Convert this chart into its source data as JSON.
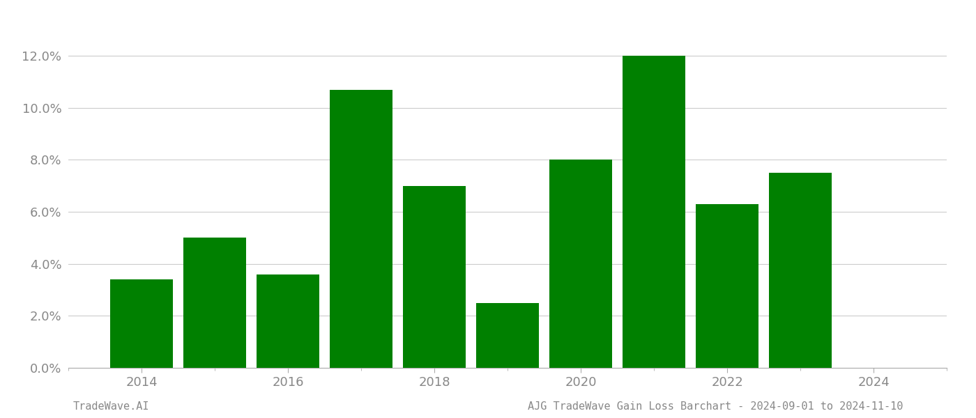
{
  "years": [
    2014,
    2015,
    2016,
    2017,
    2018,
    2019,
    2020,
    2021,
    2022,
    2023
  ],
  "values": [
    0.034,
    0.05,
    0.036,
    0.107,
    0.07,
    0.025,
    0.08,
    0.12,
    0.063,
    0.075
  ],
  "bar_color": "#008000",
  "background_color": "#ffffff",
  "grid_color": "#cccccc",
  "ytick_labels": [
    "0.0%",
    "2.0%",
    "4.0%",
    "6.0%",
    "8.0%",
    "10.0%",
    "12.0%"
  ],
  "ytick_values": [
    0.0,
    0.02,
    0.04,
    0.06,
    0.08,
    0.1,
    0.12
  ],
  "ylim": [
    0.0,
    0.135
  ],
  "xlim": [
    2013.2,
    2024.8
  ],
  "xtick_values": [
    2014,
    2016,
    2018,
    2020,
    2022,
    2024
  ],
  "xtick_labels": [
    "2014",
    "2016",
    "2018",
    "2020",
    "2022",
    "2024"
  ],
  "footer_left": "TradeWave.AI",
  "footer_right": "AJG TradeWave Gain Loss Barchart - 2024-09-01 to 2024-11-10",
  "bar_width": 0.85,
  "spine_color": "#aaaaaa",
  "tick_color": "#888888",
  "label_fontsize": 13,
  "footer_fontsize": 11
}
